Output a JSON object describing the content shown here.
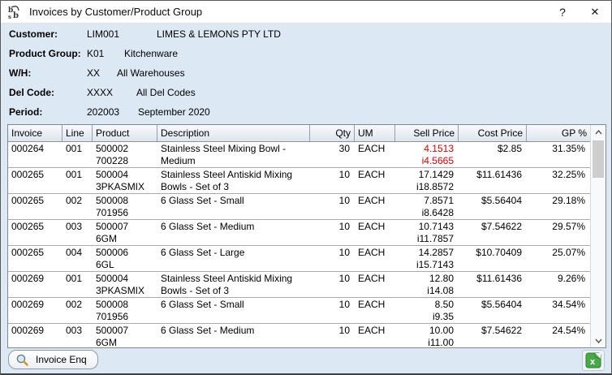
{
  "window": {
    "title": "Invoices by Customer/Product Group",
    "help_glyph": "?",
    "close_glyph": "✕",
    "app_icon": "bsb-logo-icon"
  },
  "colors": {
    "dialog_bg": "#dce8f4",
    "negative_price": "#d60000",
    "excel_green": "#4aa84a"
  },
  "header_fields": [
    {
      "label": "Customer:",
      "code": "LIM001",
      "desc": "LIMES & LEMONS PTY LTD"
    },
    {
      "label": "Product Group:",
      "code": "K01",
      "desc": "Kitchenware"
    },
    {
      "label": "W/H:",
      "code": "XX",
      "desc": "All Warehouses"
    },
    {
      "label": "Del Code:",
      "code": "XXXX",
      "desc": "All Del Codes"
    },
    {
      "label": "Period:",
      "code": "202003",
      "desc": "September 2020"
    }
  ],
  "table": {
    "columns": [
      "Invoice",
      "Line",
      "Product",
      "Description",
      "Qty",
      "UM",
      "Sell Price",
      "Cost Price",
      "GP %"
    ],
    "rows": [
      {
        "invoice": "000264",
        "line": "001",
        "product1": "500002",
        "product2": "700228",
        "desc1": "Stainless Steel Mixing Bowl -",
        "desc2": "Medium",
        "qty": "30",
        "um": "EACH",
        "sell1": "4.1513",
        "sell2": "i4.5665",
        "sell_red": true,
        "cost": "$2.85",
        "gp": "31.35%"
      },
      {
        "invoice": "000265",
        "line": "001",
        "product1": "500004",
        "product2": "3PKASMIX",
        "desc1": "Stainless Steel Antiskid Mixing",
        "desc2": "Bowls - Set of 3",
        "qty": "10",
        "um": "EACH",
        "sell1": "17.1429",
        "sell2": "i18.8572",
        "sell_red": false,
        "cost": "$11.61436",
        "gp": "32.25%"
      },
      {
        "invoice": "000265",
        "line": "002",
        "product1": "500008",
        "product2": "701956",
        "desc1": "6 Glass Set - Small",
        "desc2": "",
        "qty": "10",
        "um": "EACH",
        "sell1": "7.8571",
        "sell2": "i8.6428",
        "sell_red": false,
        "cost": "$5.56404",
        "gp": "29.18%"
      },
      {
        "invoice": "000265",
        "line": "003",
        "product1": "500007",
        "product2": "6GM",
        "desc1": "6 Glass Set - Medium",
        "desc2": "",
        "qty": "10",
        "um": "EACH",
        "sell1": "10.7143",
        "sell2": "i11.7857",
        "sell_red": false,
        "cost": "$7.54622",
        "gp": "29.57%"
      },
      {
        "invoice": "000265",
        "line": "004",
        "product1": "500006",
        "product2": "6GL",
        "desc1": "6 Glass Set - Large",
        "desc2": "",
        "qty": "10",
        "um": "EACH",
        "sell1": "14.2857",
        "sell2": "i15.7143",
        "sell_red": false,
        "cost": "$10.70409",
        "gp": "25.07%"
      },
      {
        "invoice": "000269",
        "line": "001",
        "product1": "500004",
        "product2": "3PKASMIX",
        "desc1": "Stainless Steel Antiskid Mixing",
        "desc2": "Bowls - Set of 3",
        "qty": "10",
        "um": "EACH",
        "sell1": "12.80",
        "sell2": "i14.08",
        "sell_red": false,
        "cost": "$11.61436",
        "gp": "9.26%"
      },
      {
        "invoice": "000269",
        "line": "002",
        "product1": "500008",
        "product2": "701956",
        "desc1": "6 Glass Set - Small",
        "desc2": "",
        "qty": "10",
        "um": "EACH",
        "sell1": "8.50",
        "sell2": "i9.35",
        "sell_red": false,
        "cost": "$5.56404",
        "gp": "34.54%"
      },
      {
        "invoice": "000269",
        "line": "003",
        "product1": "500007",
        "product2": "6GM",
        "desc1": "6 Glass Set - Medium",
        "desc2": "",
        "qty": "10",
        "um": "EACH",
        "sell1": "10.00",
        "sell2": "i11.00",
        "sell_red": false,
        "cost": "$7.54622",
        "gp": "24.54%"
      }
    ]
  },
  "footer": {
    "invoice_enq_label": "Invoice Enq",
    "icons": {
      "magnifier": "magnifier-icon",
      "excel_export": "excel-export-icon"
    }
  }
}
